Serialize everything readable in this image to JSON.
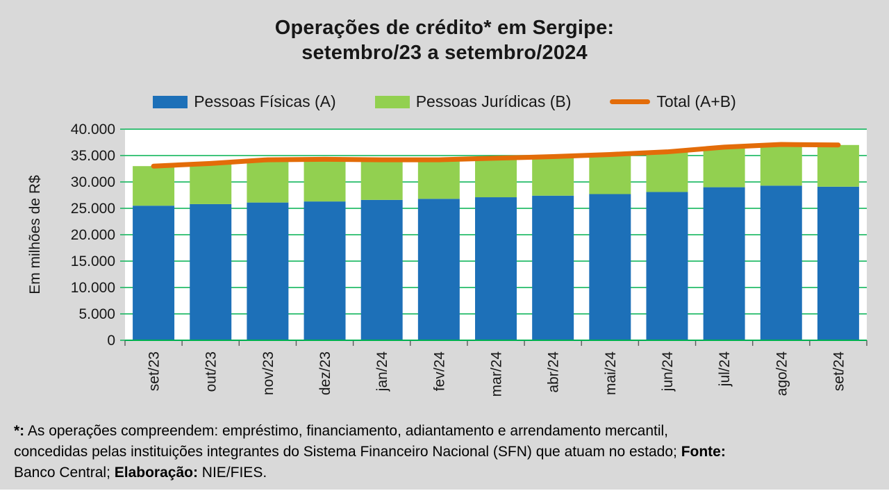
{
  "title": {
    "line1": "Operações de crédito* em Sergipe:",
    "line2": "setembro/23 a setembro/2024"
  },
  "chart_data": {
    "type": "bar",
    "subtype": "stacked-bars-with-total-line",
    "title": "Operações de crédito* em Sergipe: setembro/23 a setembro/2024",
    "ylabel": "Em milhões de R$",
    "ylim": [
      0,
      40000
    ],
    "ytick_step": 5000,
    "ytick_labels": [
      "0",
      "5.000",
      "10.000",
      "15.000",
      "20.000",
      "25.000",
      "30.000",
      "35.000",
      "40.000"
    ],
    "categories": [
      "set/23",
      "out/23",
      "nov/23",
      "dez/23",
      "jan/24",
      "fev/24",
      "mar/24",
      "abr/24",
      "mai/24",
      "jun/24",
      "jul/24",
      "ago/24",
      "set/24"
    ],
    "series": [
      {
        "name": "Pessoas Físicas (A)",
        "kind": "bar",
        "color": "#1d70b8",
        "values": [
          25500,
          25800,
          26100,
          26300,
          26600,
          26800,
          27100,
          27400,
          27700,
          28100,
          29000,
          29300,
          29100
        ]
      },
      {
        "name": "Pessoas Jurídicas (B)",
        "kind": "bar",
        "color": "#92d050",
        "values": [
          7500,
          7700,
          8100,
          8000,
          7600,
          7400,
          7400,
          7400,
          7500,
          7600,
          7600,
          7800,
          7900
        ]
      },
      {
        "name": "Total (A+B)",
        "kind": "line",
        "color": "#e36c09",
        "values": [
          33000,
          33500,
          34200,
          34300,
          34200,
          34200,
          34500,
          34800,
          35200,
          35700,
          36600,
          37100,
          37000
        ]
      }
    ],
    "colors": {
      "background": "#d9d9d9",
      "plot_background": "#ffffff",
      "gridline": "#00b050",
      "axis_tick": "#595959"
    },
    "legend_position": "top",
    "grid": true
  },
  "footnote": {
    "lines": [
      [
        {
          "t": "*:",
          "b": true
        },
        {
          "t": " As operações compreendem: empréstimo, financiamento, adiantamento e arrendamento mercantil,",
          "b": false
        }
      ],
      [
        {
          "t": "concedidas pelas instituições integrantes do Sistema Financeiro Nacional (SFN) que atuam no estado; ",
          "b": false
        },
        {
          "t": "Fonte:",
          "b": true
        }
      ],
      [
        {
          "t": "Banco Central; ",
          "b": false
        },
        {
          "t": "Elaboração:",
          "b": true
        },
        {
          "t": " NIE/FIES.",
          "b": false
        }
      ]
    ]
  }
}
